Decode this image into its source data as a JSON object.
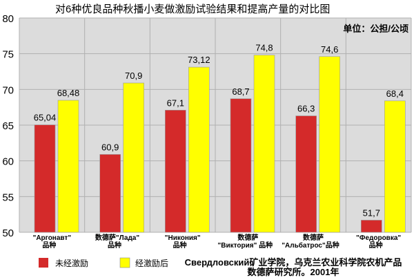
{
  "chart_data": {
    "type": "bar",
    "title": "对6种优良品种秋播小麦做激励试验结果和提高产量的对比图",
    "unit_label": "单位：公担/公顷",
    "ylim": [
      50,
      80
    ],
    "yticks": [
      50,
      55,
      60,
      65,
      70,
      75,
      80
    ],
    "grid": true,
    "categories": [
      [
        "\"Аргонавт\"",
        "品种"
      ],
      [
        "数德萨\"Лада\"",
        "品种"
      ],
      [
        "\"Никония\"",
        "品种"
      ],
      [
        "数德萨",
        "\"Виктория\" 品种"
      ],
      [
        "数德萨",
        "\"Альбатрос\"品种"
      ],
      [
        "\"Федоровка\"",
        "品种"
      ]
    ],
    "series": [
      {
        "name": "未经激励",
        "color": "#d42a2a",
        "values": [
          65.04,
          60.9,
          67.1,
          68.7,
          66.3,
          51.7
        ],
        "labels": [
          "65,04",
          "60,9",
          "67,1",
          "68,7",
          "66,3",
          "51,7"
        ]
      },
      {
        "name": "经激励后",
        "color": "#ffff00",
        "values": [
          68.48,
          70.9,
          73.12,
          74.8,
          74.6,
          68.4
        ],
        "labels": [
          "68,48",
          "70,9",
          "73,12",
          "74,8",
          "74,6",
          "68,4"
        ]
      }
    ],
    "legend": {
      "placement": "bottom-left"
    },
    "source": [
      "Свердловский矿业学院，乌克兰农业科学院农机产品",
      "数德萨研究所。2001年"
    ]
  },
  "colors": {
    "plot_background": "#dcdcdc",
    "page_background": "#ffffff",
    "gridline": "#b0b0b0",
    "red_bar": "#d42a2a",
    "yellow_bar": "#ffff00"
  }
}
